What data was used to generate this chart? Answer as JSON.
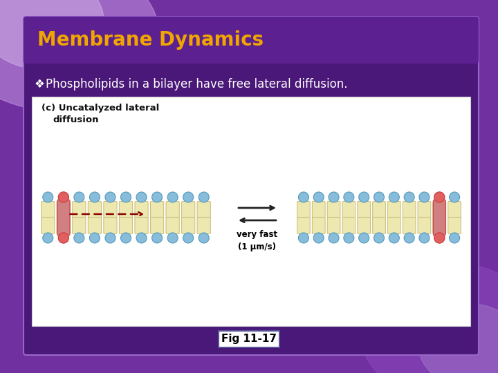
{
  "title": "Membrane Dynamics",
  "title_color": "#F0A500",
  "title_bg_color": "#5B2A8A",
  "slide_bg_outer": "#7B3FBF",
  "slide_bg_inner": "#5A1F8A",
  "content_bg_color": "#5A1F8A",
  "bullet_text": "Phospholipids in a bilayer have free lateral diffusion.",
  "bullet_color": "#FFFFFF",
  "bullet_symbol": "❖",
  "diagram_bg": "#FFFFFF",
  "diagram_label_line1": "(c) Uncatalyzed lateral",
  "diagram_label_line2": "diffusion",
  "very_fast_text": "very fast\n(1 μm/s)",
  "fig_label": "Fig 11-17",
  "fig_label_bg": "#FFFFFF",
  "fig_label_color": "#000000",
  "head_color": "#87BDDA",
  "highlight_head_color": "#E06060",
  "tail_body_color": "#EDE8B0",
  "tail_outline_color": "#C8BB78",
  "highlight_tail_color": "#D08080",
  "dashed_arrow_color": "#8B0000",
  "arrow_color": "#222222"
}
